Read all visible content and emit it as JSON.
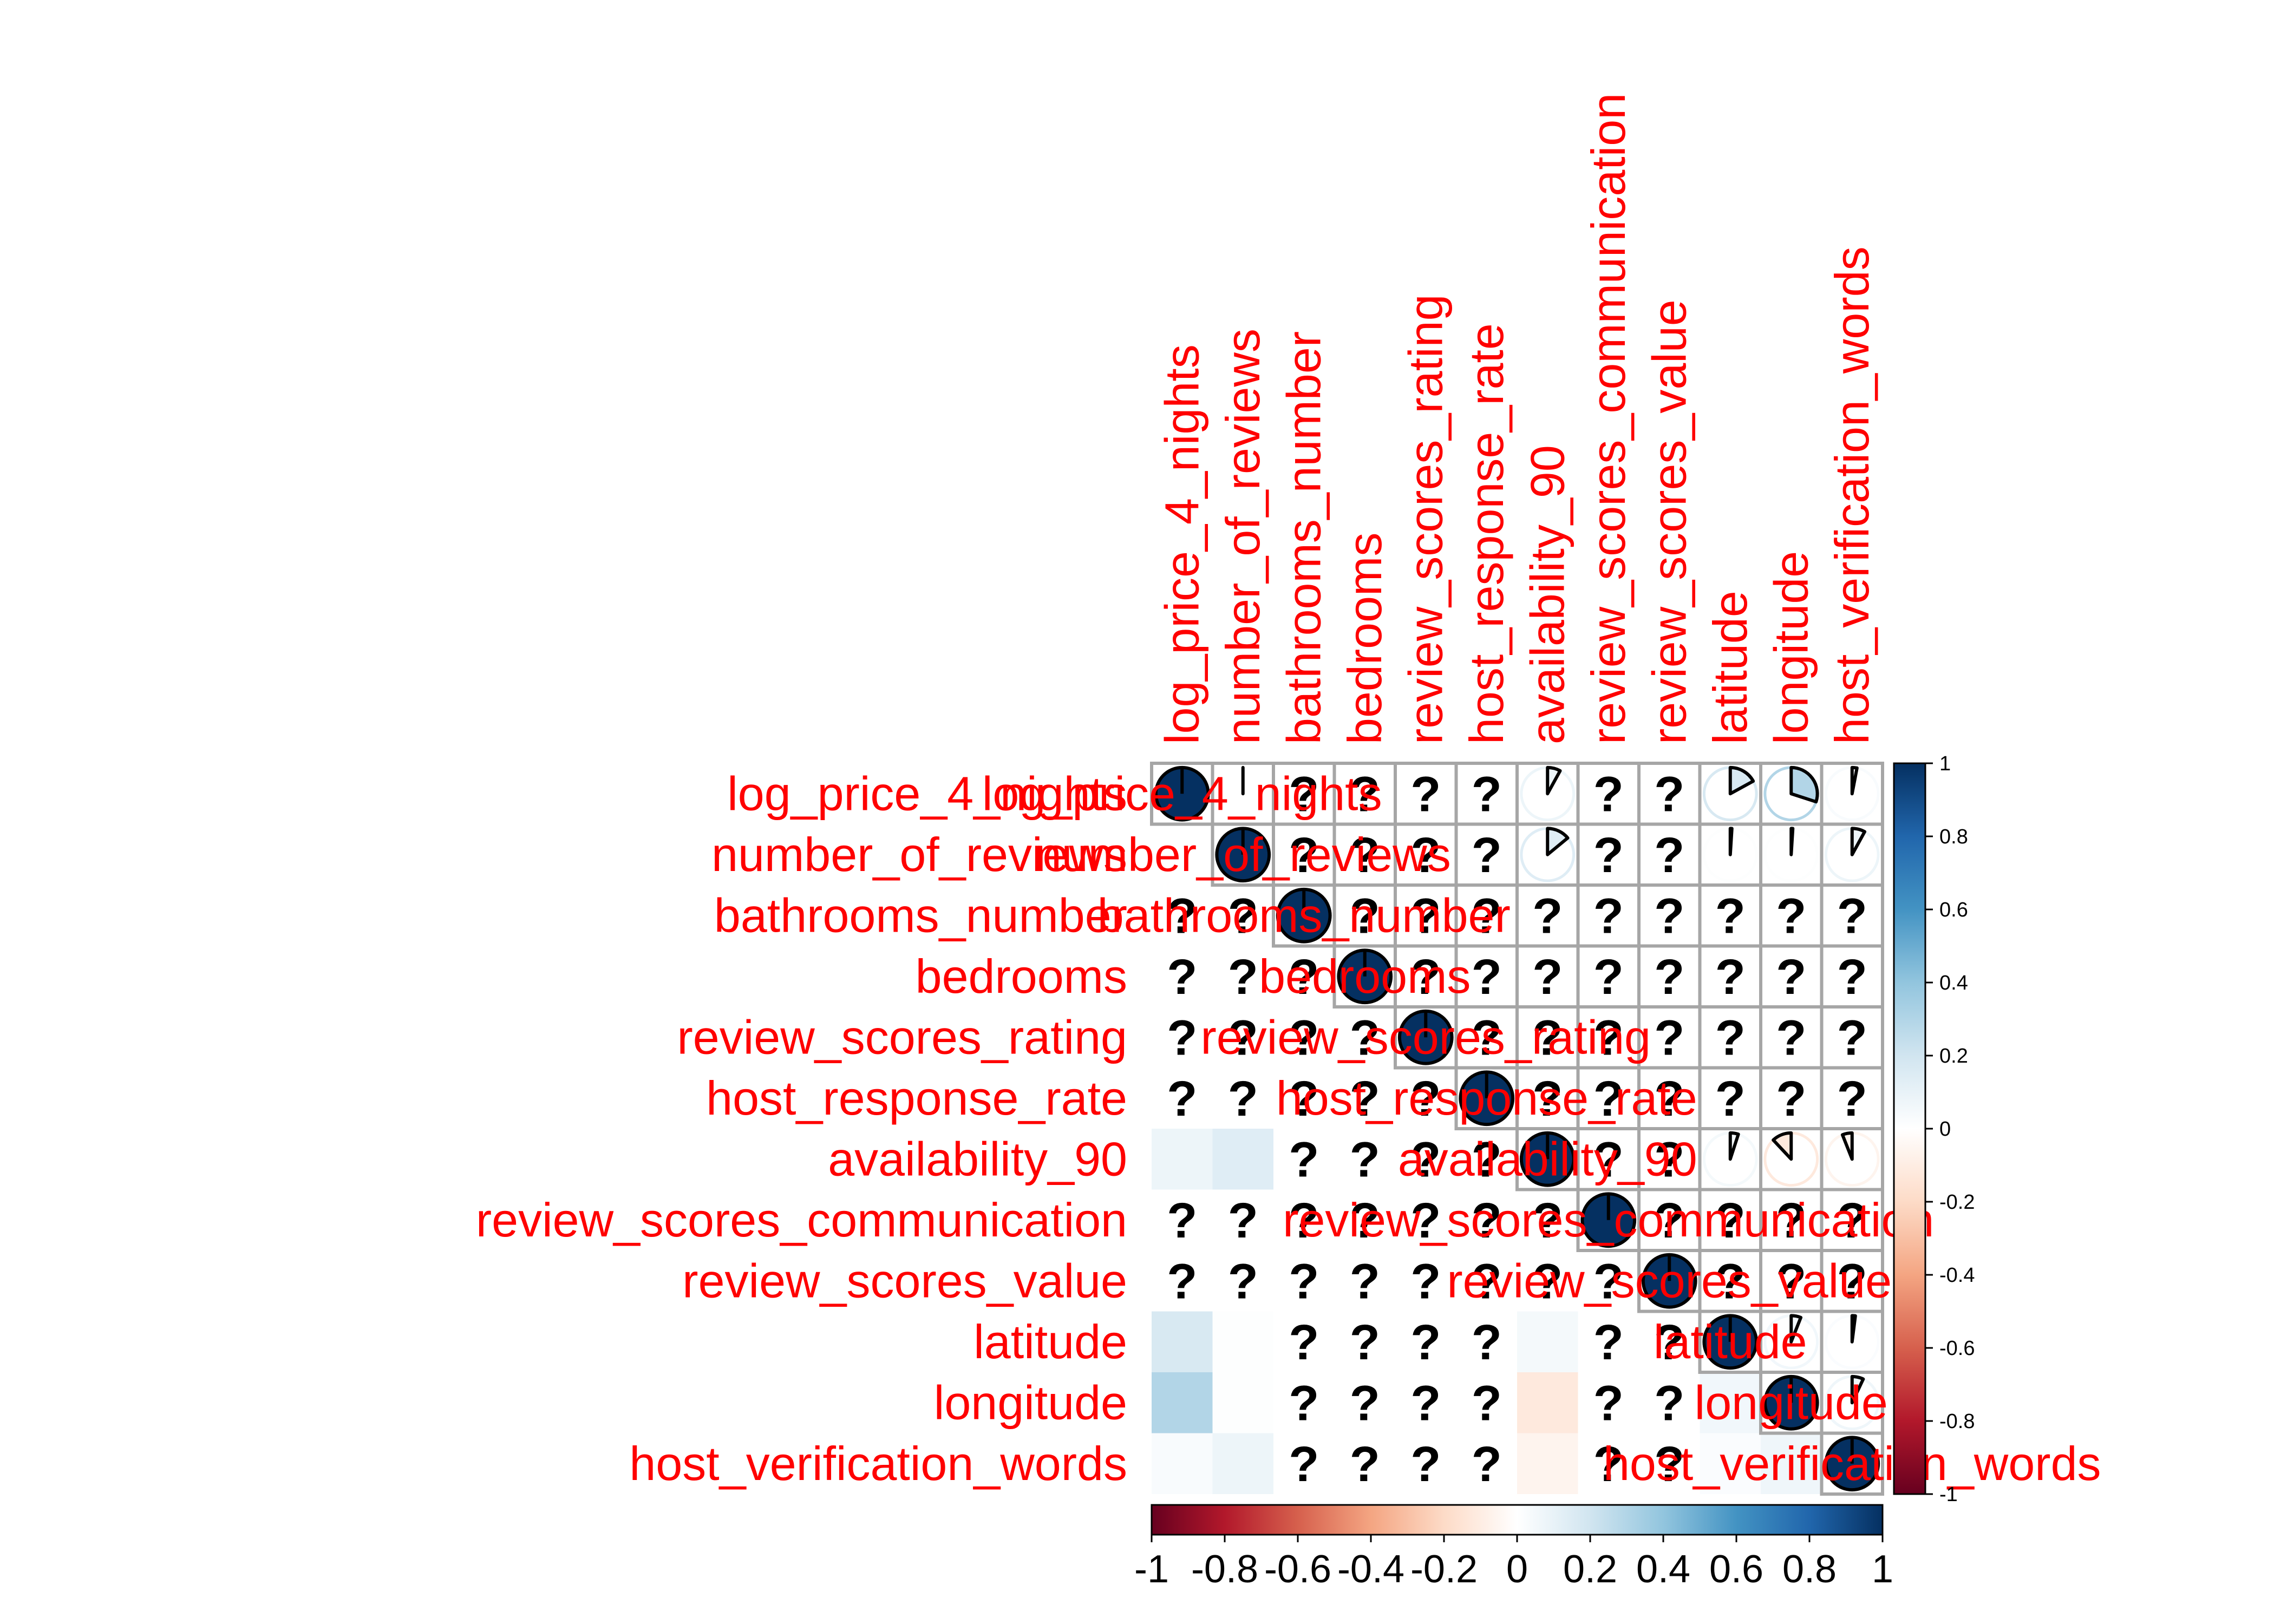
{
  "chart_data": {
    "type": "heatmap",
    "title": "",
    "variables": [
      "log_price_4_nights",
      "number_of_reviews",
      "bathrooms_number",
      "bedrooms",
      "review_scores_rating",
      "host_response_rate",
      "availability_90",
      "review_scores_communication",
      "review_scores_value",
      "latitude",
      "longitude",
      "host_verification_words"
    ],
    "matrix": [
      [
        1,
        0,
        null,
        null,
        null,
        null,
        0.08,
        null,
        null,
        0.17,
        0.3,
        0.03
      ],
      [
        0,
        1,
        null,
        null,
        null,
        null,
        0.14,
        null,
        null,
        0.01,
        0.01,
        0.08
      ],
      [
        null,
        null,
        1,
        null,
        null,
        null,
        null,
        null,
        null,
        null,
        null,
        null
      ],
      [
        null,
        null,
        null,
        1,
        null,
        null,
        null,
        null,
        null,
        null,
        null,
        null
      ],
      [
        null,
        null,
        null,
        null,
        1,
        null,
        null,
        null,
        null,
        null,
        null,
        null
      ],
      [
        null,
        null,
        null,
        null,
        null,
        1,
        null,
        null,
        null,
        null,
        null,
        null
      ],
      [
        0.08,
        0.14,
        null,
        null,
        null,
        null,
        1,
        null,
        null,
        0.05,
        -0.12,
        -0.06
      ],
      [
        null,
        null,
        null,
        null,
        null,
        null,
        null,
        1,
        null,
        null,
        null,
        null
      ],
      [
        null,
        null,
        null,
        null,
        null,
        null,
        null,
        null,
        1,
        null,
        null,
        null
      ],
      [
        0.17,
        0.01,
        null,
        null,
        null,
        null,
        0.05,
        null,
        null,
        1,
        0.06,
        0.02
      ],
      [
        0.3,
        0.01,
        null,
        null,
        null,
        null,
        -0.12,
        null,
        null,
        0.06,
        1,
        0.07
      ],
      [
        0.03,
        0.08,
        null,
        null,
        null,
        null,
        -0.06,
        null,
        null,
        0.02,
        0.07,
        1
      ]
    ],
    "missing_symbol": "?",
    "colorbar_ticks": [
      "1",
      "0.8",
      "0.6",
      "0.4",
      "0.2",
      "0",
      "-0.2",
      "-0.4",
      "-0.6",
      "-0.8",
      "-1"
    ],
    "bottom_axis_ticks": [
      "-1",
      "-0.8",
      "-0.6",
      "-0.4",
      "-0.2",
      "0",
      "0.2",
      "0.4",
      "0.6",
      "0.8",
      "1"
    ],
    "color_range": [
      -1,
      1
    ],
    "colors": {
      "negative": "#67001f",
      "zero": "#ffffff",
      "positive": "#053061",
      "label": "#ff0000"
    }
  }
}
